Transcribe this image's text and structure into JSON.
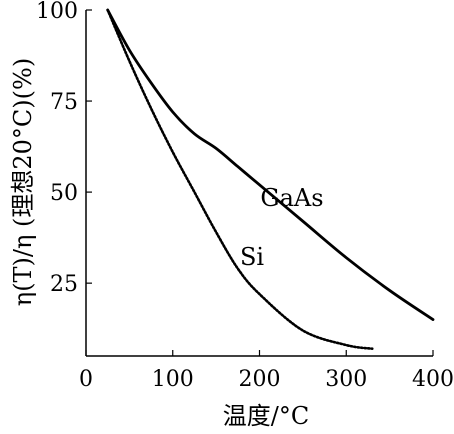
{
  "chart_data": {
    "type": "line",
    "title": "",
    "xlabel": "温度/°C",
    "ylabel": "η(T)/η (理想20°C)(%)",
    "xlim": [
      0,
      400
    ],
    "ylim": [
      5,
      100
    ],
    "xticks": [
      0,
      100,
      200,
      300,
      400
    ],
    "yticks": [
      25,
      50,
      75,
      100
    ],
    "grid": false,
    "legend": "none",
    "series": [
      {
        "name": "GaAs",
        "style": "solid",
        "color": "#000000",
        "x": [
          25,
          50,
          75,
          100,
          125,
          150,
          175,
          200,
          250,
          300,
          350,
          400
        ],
        "y": [
          100,
          89,
          80,
          72,
          66,
          62,
          57,
          52,
          42,
          32,
          23,
          15
        ]
      },
      {
        "name": "Si",
        "style": "dotted",
        "color": "#000000",
        "x": [
          25,
          50,
          75,
          100,
          125,
          150,
          175,
          200,
          250,
          300,
          330
        ],
        "y": [
          100,
          86,
          73,
          61,
          50,
          39,
          29,
          22,
          12,
          8,
          7
        ]
      }
    ]
  }
}
